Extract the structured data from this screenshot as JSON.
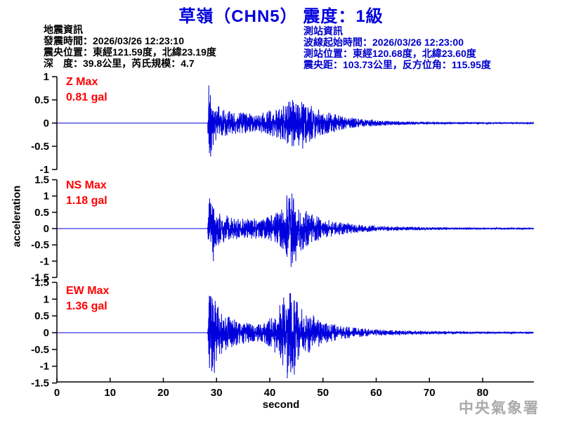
{
  "title": "草嶺（CHN5） 震度：1級",
  "quake_info": {
    "heading": "地震資訊",
    "line1": "發震時間：2026/03/26 12:23:10",
    "line2": "震央位置：東經121.59度，北緯23.19度",
    "line3": "深　度：39.8公里，芮氏規模：4.7"
  },
  "station_info": {
    "heading": "測站資訊",
    "line1": "波線起始時間：2026/03/26 12:23:00",
    "line2": "測站位置：東經120.68度，北緯23.60度",
    "line3": "震央距：103.73公里，反方位角：115.95度"
  },
  "watermark": "中央氣象署",
  "colors": {
    "title": "#0000dd",
    "station_info": "#0000cc",
    "trace": "#0000dd",
    "max_label": "#ff0000",
    "axis": "#000000",
    "watermark": "#aaaaaa"
  },
  "chart_data": {
    "type": "line",
    "xlabel": "second",
    "ylabel": "acceleration",
    "xlim": [
      0,
      89.6
    ],
    "x_tick_labels": [
      "0",
      "10",
      "20",
      "30",
      "40",
      "50",
      "60",
      "70",
      "80"
    ],
    "p_onset_s": 28.4,
    "s_onset_s": 43.3,
    "trace_color": "#0000dd",
    "traces": [
      {
        "name": "Z",
        "label": "Z Max",
        "max_label": "0.81 gal",
        "max_gal": 0.81,
        "ylim": [
          -1,
          1
        ],
        "y_tick_labels": [
          "1",
          "0.5",
          "0",
          "-0.5",
          "-1"
        ],
        "seed": 11,
        "envelope": [
          [
            0,
            0
          ],
          [
            28.3,
            0
          ],
          [
            28.5,
            0.81
          ],
          [
            29.3,
            0.5
          ],
          [
            31,
            0.3
          ],
          [
            33,
            0.24
          ],
          [
            36,
            0.22
          ],
          [
            38,
            0.2
          ],
          [
            40,
            0.28
          ],
          [
            42,
            0.35
          ],
          [
            44,
            0.5
          ],
          [
            46,
            0.48
          ],
          [
            47.5,
            0.4
          ],
          [
            49,
            0.3
          ],
          [
            52,
            0.2
          ],
          [
            55,
            0.12
          ],
          [
            58,
            0.08
          ],
          [
            62,
            0.05
          ],
          [
            66,
            0.035
          ],
          [
            72,
            0.025
          ],
          [
            80,
            0.018
          ],
          [
            89.6,
            0.012
          ]
        ],
        "peaks": [
          [
            28.55,
            0.81
          ],
          [
            28.9,
            -0.72
          ],
          [
            44.3,
            0.5
          ],
          [
            46.2,
            -0.55
          ]
        ]
      },
      {
        "name": "NS",
        "label": "NS Max",
        "max_label": "1.18 gal",
        "max_gal": 1.18,
        "ylim": [
          -1.5,
          1.5
        ],
        "y_tick_labels": [
          "1.5",
          "1",
          "0.5",
          "0",
          "-0.5",
          "-1",
          "-1.5"
        ],
        "seed": 23,
        "envelope": [
          [
            0,
            0
          ],
          [
            28.3,
            0
          ],
          [
            28.6,
            0.95
          ],
          [
            30,
            0.55
          ],
          [
            31,
            0.45
          ],
          [
            33,
            0.35
          ],
          [
            35,
            0.3
          ],
          [
            38,
            0.32
          ],
          [
            41,
            0.45
          ],
          [
            43,
            0.8
          ],
          [
            44,
            1.18
          ],
          [
            45,
            0.85
          ],
          [
            46.5,
            0.6
          ],
          [
            48,
            0.45
          ],
          [
            50,
            0.3
          ],
          [
            53,
            0.2
          ],
          [
            56,
            0.13
          ],
          [
            60,
            0.09
          ],
          [
            65,
            0.06
          ],
          [
            70,
            0.045
          ],
          [
            75,
            0.035
          ],
          [
            82,
            0.025
          ],
          [
            89.6,
            0.02
          ]
        ],
        "peaks": [
          [
            28.7,
            0.93
          ],
          [
            29.4,
            -1.0
          ],
          [
            43.2,
            1.02
          ],
          [
            44.0,
            -1.18
          ],
          [
            44.9,
            -1.0
          ]
        ]
      },
      {
        "name": "EW",
        "label": "EW Max",
        "max_label": "1.36 gal",
        "max_gal": 1.36,
        "ylim": [
          -1.5,
          1.5
        ],
        "y_tick_labels": [
          "1.5",
          "1",
          "0.5",
          "0",
          "-0.5",
          "-1",
          "-1.5"
        ],
        "seed": 37,
        "envelope": [
          [
            0,
            0
          ],
          [
            28.3,
            0
          ],
          [
            28.6,
            1.1
          ],
          [
            29.2,
            1.15
          ],
          [
            30.5,
            0.7
          ],
          [
            32,
            0.5
          ],
          [
            34,
            0.38
          ],
          [
            36,
            0.3
          ],
          [
            39,
            0.3
          ],
          [
            41,
            0.6
          ],
          [
            42.5,
            1.0
          ],
          [
            43.3,
            1.36
          ],
          [
            44.5,
            1.1
          ],
          [
            45.5,
            0.9
          ],
          [
            47,
            0.7
          ],
          [
            48.5,
            0.5
          ],
          [
            50,
            0.35
          ],
          [
            53,
            0.22
          ],
          [
            56,
            0.15
          ],
          [
            60,
            0.1
          ],
          [
            65,
            0.07
          ],
          [
            70,
            0.05
          ],
          [
            75,
            0.04
          ],
          [
            82,
            0.028
          ],
          [
            89.6,
            0.02
          ]
        ],
        "peaks": [
          [
            28.65,
            1.1
          ],
          [
            29.1,
            -1.15
          ],
          [
            29.6,
            -1.2
          ],
          [
            42.6,
            1.05
          ],
          [
            43.3,
            -1.36
          ],
          [
            43.9,
            1.18
          ],
          [
            44.6,
            -1.25
          ]
        ]
      }
    ]
  }
}
